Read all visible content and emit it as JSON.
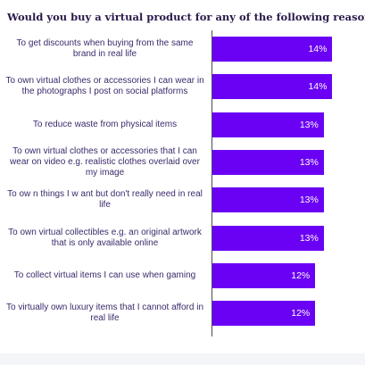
{
  "chart_data": {
    "type": "bar",
    "orientation": "horizontal",
    "title": "Would you buy a virtual product for any of the following reasons?",
    "categories": [
      "To get discounts when buying from the same brand in real life",
      "To own virtual clothes or accessories I can wear in the photographs I post on social platforms",
      "To reduce waste from physical items",
      "To own virtual clothes or accessories that I can wear on video e.g. realistic clothes overlaid over my image",
      "To ow n things I w ant but don't really need in real life",
      "To own virtual collectibles e.g. an original artwork that is only available online",
      "To collect virtual items I can use when gaming",
      "To virtually own luxury items that I cannot afford in real life"
    ],
    "values": [
      14,
      14,
      13,
      13,
      13,
      13,
      12,
      12
    ],
    "value_labels": [
      "14%",
      "14%",
      "13%",
      "13%",
      "13%",
      "13%",
      "12%",
      "12%"
    ],
    "unit": "%",
    "xlim": [
      0,
      15.2
    ],
    "grid": false,
    "legend": "none",
    "bar_color": "#6a00f4"
  }
}
